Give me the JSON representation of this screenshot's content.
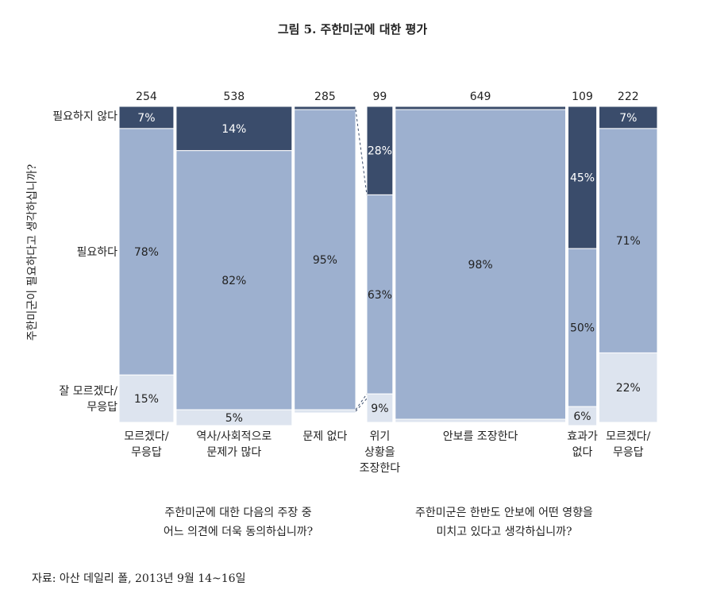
{
  "title": "그림 5. 주한미군에 대한 평가",
  "ylabel": "주한미군이 필요하다고 생각하십니까?",
  "source": "자료: 아산 데일리 폴, 2013년 9월 14~16일",
  "row_labels": [
    "필요하지 않다",
    "필요하다",
    "잘 모르겠다/\n무응답"
  ],
  "captions": {
    "left": "주한미군에 대한 다음의 주장 중\n어느 의견에 더욱 동의하십니까?",
    "right": "주한미군은 한반도 안보에 어떤 영향을\n미치고 있다고 생각하십니까?"
  },
  "colors": {
    "not_needed": "#3a4c6b",
    "needed": "#9db0cf",
    "dont_know": "#dde4ef"
  },
  "chart_data": [
    {
      "type": "mosaic",
      "question": "주한미군에 대한 다음의 주장 중 어느 의견에 더욱 동의하십니까?",
      "categories": [
        "모르겠다/\n무응답",
        "역사/사회적으로\n문제가 많다",
        "문제 없다"
      ],
      "counts": [
        254,
        538,
        285
      ],
      "series": [
        {
          "name": "필요하지 않다",
          "values": [
            7,
            14,
            1
          ],
          "labels": [
            "7%",
            "14%",
            ""
          ]
        },
        {
          "name": "필요하다",
          "values": [
            78,
            82,
            95
          ],
          "labels": [
            "78%",
            "82%",
            "95%"
          ]
        },
        {
          "name": "잘 모르겠다/무응답",
          "values": [
            15,
            5,
            1
          ],
          "labels": [
            "15%",
            "5%",
            ""
          ]
        }
      ]
    },
    {
      "type": "mosaic",
      "question": "주한미군은 한반도 안보에 어떤 영향을 미치고 있다고 생각하십니까?",
      "categories": [
        "위기\n상황을\n조장한다",
        "안보를 조장한다",
        "효과가\n없다",
        "모르겠다/\n무응답"
      ],
      "counts": [
        99,
        649,
        109,
        222
      ],
      "series": [
        {
          "name": "필요하지 않다",
          "values": [
            28,
            1,
            45,
            7
          ],
          "labels": [
            "28%",
            "",
            "45%",
            "7%"
          ]
        },
        {
          "name": "필요하다",
          "values": [
            63,
            98,
            50,
            71
          ],
          "labels": [
            "63%",
            "98%",
            "50%",
            "71%"
          ]
        },
        {
          "name": "잘 모르겠다/무응답",
          "values": [
            9,
            1,
            6,
            22
          ],
          "labels": [
            "9%",
            "",
            "6%",
            "22%"
          ]
        }
      ]
    }
  ]
}
